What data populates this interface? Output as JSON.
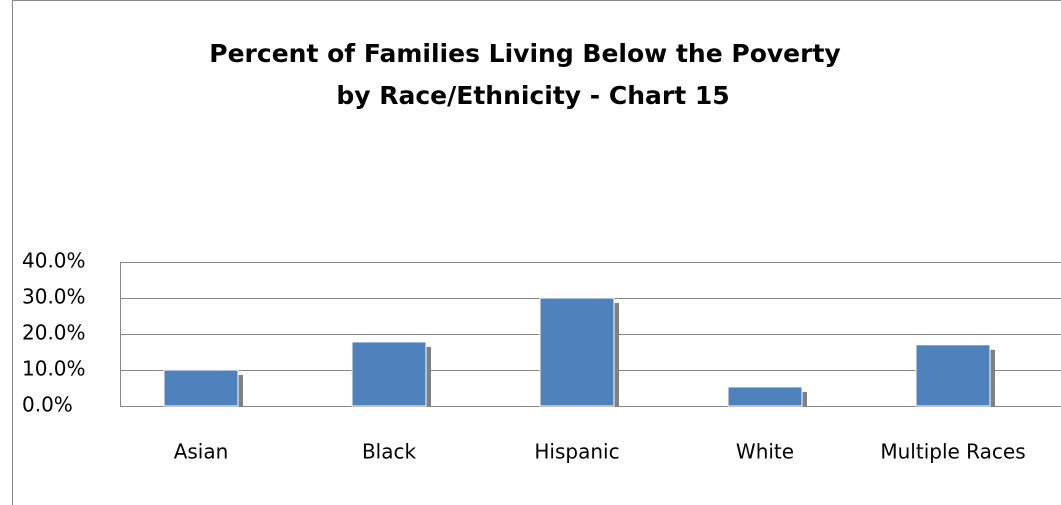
{
  "chart_data": {
    "type": "bar",
    "title": [
      "Percent of Families Living Below the Poverty",
      "by Race/Ethnicity - Chart 15"
    ],
    "categories": [
      "Asian",
      "Black",
      "Hispanic",
      "White",
      "Multiple Races"
    ],
    "values": [
      10.0,
      17.8,
      30.0,
      5.3,
      17.0
    ],
    "color": "#4f81bd",
    "shadow_color": "#808080",
    "ylim": [
      0,
      40
    ],
    "yticks": [
      {
        "value": 0,
        "label": "0.0%"
      },
      {
        "value": 10,
        "label": "10.0%"
      },
      {
        "value": 20,
        "label": "20.0%"
      },
      {
        "value": 30,
        "label": "30.0%"
      },
      {
        "value": 40,
        "label": "40.0%"
      }
    ],
    "grid": true
  }
}
